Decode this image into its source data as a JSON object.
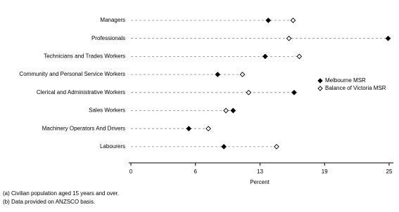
{
  "chart_data": {
    "type": "dot",
    "categories": [
      "Managers",
      "Professionals",
      "Technicians and Trades Workers",
      "Community and Personal Service Workers",
      "Clerical and Administrative Workers",
      "Sales Workers",
      "Machinery Operators And Drivers",
      "Labourers"
    ],
    "series": [
      {
        "name": "Melbourne MSR",
        "color": "#000000",
        "marker": "filled-diamond",
        "values": [
          13.3,
          24.9,
          13.0,
          8.4,
          15.8,
          9.9,
          5.6,
          9.0
        ]
      },
      {
        "name": "Balance of Victoria MSR",
        "color": "#000000",
        "marker": "open-diamond",
        "values": [
          15.7,
          15.3,
          16.3,
          10.8,
          11.4,
          9.2,
          7.5,
          14.1
        ]
      }
    ],
    "xlabel": "Percent",
    "xlim": [
      0,
      25
    ],
    "xticks": [
      0,
      {
        "value": 6.25,
        "label": "6"
      },
      {
        "value": 12.5,
        "label": "13"
      },
      {
        "value": 18.75,
        "label": "19"
      },
      25
    ],
    "legend": "right",
    "footnotes": [
      "(a) Civilian population aged 15 years and over.",
      "(b) Data provided on ANZSCO basis."
    ]
  }
}
